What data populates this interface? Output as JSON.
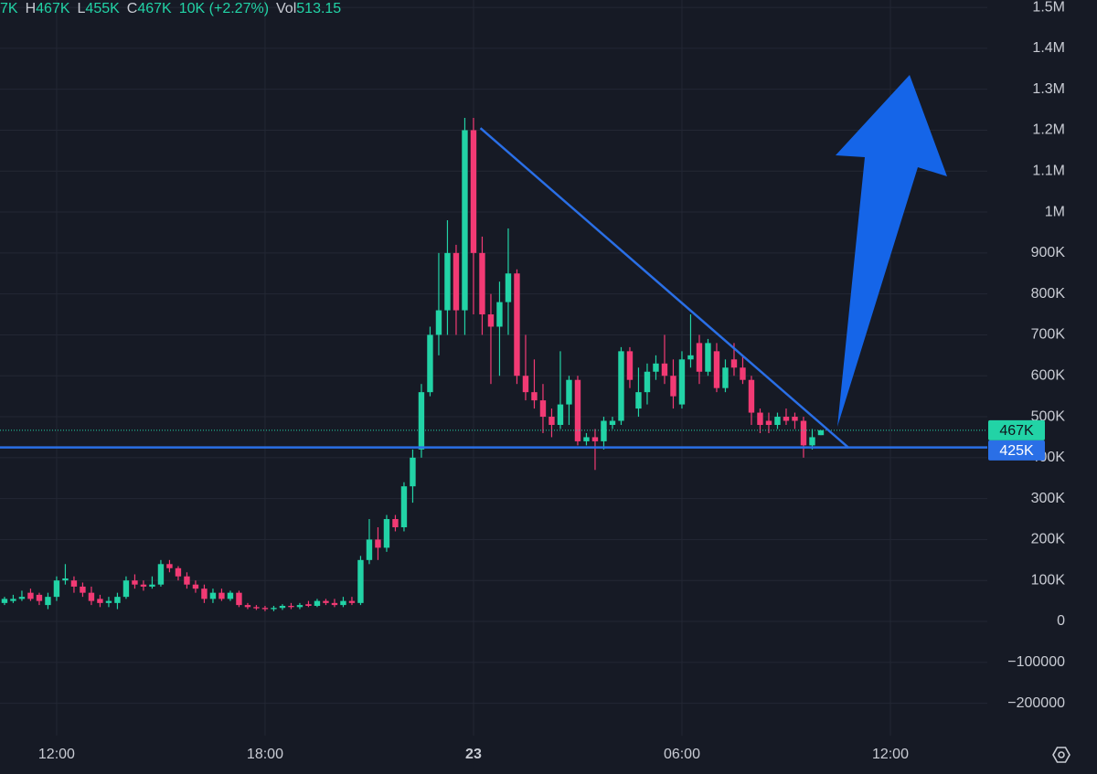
{
  "header": {
    "fragment": "7K",
    "items": [
      {
        "label": "H",
        "value": "467K"
      },
      {
        "label": "L",
        "value": "455K"
      },
      {
        "label": "C",
        "value": "467K"
      },
      {
        "value": "10K (+2.27%)"
      },
      {
        "label": "Vol",
        "value": "513.15"
      }
    ]
  },
  "chart_data": {
    "type": "candlestick",
    "up_color": "#22d3a6",
    "down_color": "#f23a74",
    "grid": true,
    "xlim": [
      10.37,
      38.79
    ],
    "xticks": [
      {
        "value": 12,
        "label": "12:00"
      },
      {
        "value": 18,
        "label": "18:00"
      },
      {
        "value": 24,
        "label": "23"
      },
      {
        "value": 30,
        "label": "06:00"
      },
      {
        "value": 36,
        "label": "12:00"
      }
    ],
    "ylim": [
      -279000,
      1518000
    ],
    "yticks": [
      {
        "value": 1500000,
        "label": "1.5M"
      },
      {
        "value": 1400000,
        "label": "1.4M"
      },
      {
        "value": 1300000,
        "label": "1.3M"
      },
      {
        "value": 1200000,
        "label": "1.2M"
      },
      {
        "value": 1100000,
        "label": "1.1M"
      },
      {
        "value": 1000000,
        "label": "1M"
      },
      {
        "value": 900000,
        "label": "900K"
      },
      {
        "value": 800000,
        "label": "800K"
      },
      {
        "value": 700000,
        "label": "700K"
      },
      {
        "value": 600000,
        "label": "600K"
      },
      {
        "value": 500000,
        "label": "500K"
      },
      {
        "value": 400000,
        "label": "400K"
      },
      {
        "value": 300000,
        "label": "300K"
      },
      {
        "value": 200000,
        "label": "200K"
      },
      {
        "value": 100000,
        "label": "100K"
      },
      0,
      {
        "value": -100000,
        "label": "−100000"
      },
      {
        "value": -200000,
        "label": "−200000"
      }
    ],
    "x": [
      10.5,
      10.75,
      11,
      11.25,
      11.5,
      11.75,
      12,
      12.25,
      12.5,
      12.75,
      13,
      13.25,
      13.5,
      13.75,
      14,
      14.25,
      14.5,
      14.75,
      15,
      15.25,
      15.5,
      15.75,
      16,
      16.25,
      16.5,
      16.75,
      17,
      17.25,
      17.5,
      17.75,
      18,
      18.25,
      18.5,
      18.75,
      19,
      19.25,
      19.5,
      19.75,
      20,
      20.25,
      20.5,
      20.75,
      21,
      21.25,
      21.5,
      21.75,
      22,
      22.25,
      22.5,
      22.75,
      23,
      23.25,
      23.5,
      23.75,
      24,
      24.25,
      24.5,
      24.75,
      25,
      25.25,
      25.5,
      25.75,
      26,
      26.25,
      26.5,
      26.75,
      27,
      27.25,
      27.5,
      27.75,
      28,
      28.25,
      28.5,
      28.75,
      29,
      29.25,
      29.5,
      29.75,
      30,
      30.25,
      30.5,
      30.75,
      31,
      31.25,
      31.5,
      31.75,
      32,
      32.25,
      32.5,
      32.75,
      33,
      33.25,
      33.5,
      33.75,
      34
    ],
    "open": [
      45000,
      50000,
      55000,
      70000,
      65000,
      40000,
      60000,
      100000,
      100000,
      85000,
      70000,
      55000,
      45000,
      45000,
      60000,
      100000,
      90000,
      85000,
      90000,
      140000,
      130000,
      110000,
      90000,
      80000,
      55000,
      70000,
      55000,
      70000,
      40000,
      35000,
      33000,
      30000,
      33000,
      38000,
      35000,
      42000,
      38000,
      50000,
      45000,
      40000,
      50000,
      45000,
      150000,
      200000,
      180000,
      250000,
      230000,
      330000,
      420000,
      560000,
      700000,
      760000,
      900000,
      760000,
      1200000,
      900000,
      750000,
      720000,
      780000,
      850000,
      600000,
      560000,
      540000,
      500000,
      480000,
      530000,
      590000,
      440000,
      450000,
      440000,
      480000,
      490000,
      660000,
      520000,
      560000,
      610000,
      630000,
      600000,
      530000,
      640000,
      680000,
      610000,
      660000,
      570000,
      640000,
      620000,
      590000,
      510000,
      490000,
      480000,
      500000,
      500000,
      490000,
      430000,
      455000
    ],
    "high": [
      60000,
      65000,
      75000,
      80000,
      70000,
      70000,
      110000,
      140000,
      110000,
      95000,
      85000,
      65000,
      60000,
      70000,
      110000,
      115000,
      100000,
      110000,
      150000,
      150000,
      135000,
      120000,
      100000,
      90000,
      80000,
      80000,
      75000,
      75000,
      45000,
      40000,
      38000,
      38000,
      42000,
      45000,
      45000,
      50000,
      55000,
      55000,
      55000,
      60000,
      60000,
      160000,
      250000,
      230000,
      260000,
      260000,
      340000,
      420000,
      580000,
      720000,
      900000,
      980000,
      920000,
      1230000,
      1230000,
      940000,
      800000,
      830000,
      960000,
      860000,
      700000,
      640000,
      580000,
      520000,
      660000,
      600000,
      600000,
      460000,
      470000,
      500000,
      500000,
      670000,
      670000,
      620000,
      630000,
      650000,
      700000,
      640000,
      660000,
      750000,
      700000,
      690000,
      680000,
      640000,
      680000,
      650000,
      600000,
      520000,
      510000,
      510000,
      520000,
      510000,
      500000,
      470000,
      467000
    ],
    "low": [
      40000,
      45000,
      50000,
      50000,
      40000,
      30000,
      50000,
      90000,
      70000,
      60000,
      40000,
      35000,
      35000,
      30000,
      55000,
      80000,
      75000,
      80000,
      85000,
      120000,
      100000,
      80000,
      70000,
      45000,
      45000,
      50000,
      50000,
      35000,
      30000,
      28000,
      25000,
      25000,
      28000,
      30000,
      30000,
      35000,
      35000,
      40000,
      35000,
      35000,
      40000,
      40000,
      140000,
      150000,
      170000,
      220000,
      220000,
      290000,
      400000,
      550000,
      650000,
      700000,
      700000,
      700000,
      750000,
      700000,
      580000,
      600000,
      700000,
      580000,
      540000,
      520000,
      460000,
      450000,
      470000,
      480000,
      430000,
      430000,
      370000,
      420000,
      470000,
      480000,
      570000,
      500000,
      530000,
      590000,
      580000,
      520000,
      520000,
      620000,
      580000,
      600000,
      560000,
      560000,
      600000,
      580000,
      480000,
      460000,
      460000,
      470000,
      480000,
      470000,
      400000,
      420000,
      455000
    ],
    "close": [
      55000,
      55000,
      60000,
      55000,
      50000,
      60000,
      100000,
      105000,
      85000,
      70000,
      50000,
      45000,
      50000,
      60000,
      100000,
      90000,
      85000,
      90000,
      140000,
      130000,
      110000,
      90000,
      80000,
      55000,
      70000,
      55000,
      70000,
      40000,
      35000,
      32000,
      30000,
      33000,
      38000,
      35000,
      40000,
      38000,
      50000,
      45000,
      40000,
      50000,
      45000,
      150000,
      200000,
      180000,
      250000,
      230000,
      330000,
      400000,
      560000,
      700000,
      760000,
      900000,
      760000,
      1200000,
      900000,
      750000,
      720000,
      780000,
      850000,
      600000,
      560000,
      540000,
      500000,
      480000,
      530000,
      590000,
      440000,
      450000,
      440000,
      490000,
      490000,
      660000,
      590000,
      560000,
      610000,
      630000,
      600000,
      550000,
      640000,
      650000,
      610000,
      680000,
      570000,
      620000,
      620000,
      590000,
      510000,
      480000,
      480000,
      500000,
      490000,
      490000,
      430000,
      450000,
      467000
    ],
    "trendline": {
      "x": [
        24.2,
        34.8
      ],
      "y": [
        1205000,
        424000
      ],
      "color": "#2a6fe6"
    },
    "price_lines": [
      {
        "value": 467000,
        "label": "467K",
        "color": "#22d3a6",
        "style": "dotted"
      },
      {
        "value": 425000,
        "label": "425K",
        "color": "#2a6fe6",
        "style": "solid"
      }
    ]
  }
}
